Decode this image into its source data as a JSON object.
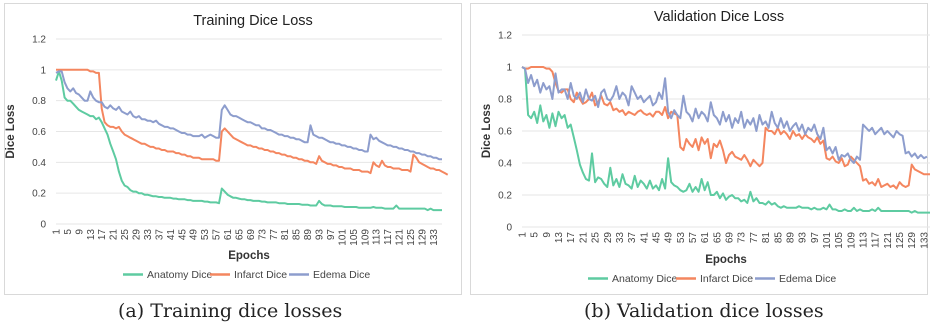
{
  "colors": {
    "anatomy": "#5ecba1",
    "infarct": "#f4865f",
    "edema": "#8d9dcd"
  },
  "captions": {
    "a": "(a) Training dice losses",
    "b": "(b) Validation dice losses"
  },
  "chart_data": [
    {
      "type": "line",
      "title": "Training Dice Loss",
      "xlabel": "Epochs",
      "ylabel": "Dice Loss",
      "ylim": [
        0,
        1.2
      ],
      "yticks": [
        "0",
        "0.2",
        "0.4",
        "0.6",
        "0.8",
        "1",
        "1.2"
      ],
      "xticks": [
        "1",
        "5",
        "9",
        "13",
        "17",
        "21",
        "25",
        "29",
        "33",
        "37",
        "41",
        "45",
        "49",
        "53",
        "57",
        "61",
        "65",
        "69",
        "73",
        "77",
        "81",
        "85",
        "89",
        "93",
        "97",
        "101",
        "105",
        "109",
        "113",
        "117",
        "121",
        "125",
        "129",
        "133"
      ],
      "grid": true,
      "legend": "bottom",
      "series": [
        {
          "name": "Anatomy Dice",
          "color_key": "anatomy",
          "values": [
            0.93,
            0.99,
            0.93,
            0.82,
            0.8,
            0.8,
            0.78,
            0.76,
            0.74,
            0.73,
            0.72,
            0.71,
            0.7,
            0.7,
            0.68,
            0.69,
            0.66,
            0.62,
            0.58,
            0.52,
            0.47,
            0.42,
            0.34,
            0.28,
            0.25,
            0.24,
            0.22,
            0.21,
            0.21,
            0.2,
            0.2,
            0.19,
            0.19,
            0.185,
            0.18,
            0.18,
            0.175,
            0.175,
            0.17,
            0.17,
            0.17,
            0.165,
            0.165,
            0.16,
            0.16,
            0.16,
            0.155,
            0.155,
            0.15,
            0.15,
            0.15,
            0.15,
            0.145,
            0.145,
            0.14,
            0.14,
            0.14,
            0.135,
            0.23,
            0.21,
            0.19,
            0.18,
            0.17,
            0.17,
            0.165,
            0.16,
            0.16,
            0.155,
            0.155,
            0.15,
            0.15,
            0.15,
            0.145,
            0.145,
            0.14,
            0.14,
            0.14,
            0.14,
            0.135,
            0.135,
            0.135,
            0.13,
            0.13,
            0.13,
            0.13,
            0.13,
            0.125,
            0.125,
            0.125,
            0.12,
            0.12,
            0.12,
            0.15,
            0.13,
            0.12,
            0.12,
            0.12,
            0.115,
            0.115,
            0.115,
            0.115,
            0.11,
            0.11,
            0.11,
            0.11,
            0.11,
            0.105,
            0.105,
            0.105,
            0.105,
            0.105,
            0.11,
            0.105,
            0.105,
            0.105,
            0.1,
            0.1,
            0.1,
            0.1,
            0.12,
            0.1,
            0.1,
            0.1,
            0.1,
            0.1,
            0.1,
            0.1,
            0.1,
            0.1,
            0.1,
            0.09,
            0.1,
            0.09,
            0.09,
            0.09,
            0.09
          ]
        },
        {
          "name": "Infarct Dice",
          "color_key": "infarct",
          "values": [
            1.0,
            1.0,
            1.0,
            1.0,
            1.0,
            1.0,
            1.0,
            1.0,
            1.0,
            1.0,
            1.0,
            1.0,
            0.99,
            0.99,
            0.98,
            0.98,
            0.75,
            0.66,
            0.64,
            0.63,
            0.63,
            0.62,
            0.63,
            0.6,
            0.58,
            0.57,
            0.56,
            0.55,
            0.54,
            0.53,
            0.52,
            0.52,
            0.51,
            0.5,
            0.5,
            0.49,
            0.49,
            0.48,
            0.48,
            0.47,
            0.47,
            0.47,
            0.46,
            0.46,
            0.45,
            0.45,
            0.44,
            0.44,
            0.43,
            0.43,
            0.43,
            0.42,
            0.42,
            0.42,
            0.42,
            0.42,
            0.41,
            0.41,
            0.6,
            0.62,
            0.6,
            0.58,
            0.56,
            0.55,
            0.54,
            0.53,
            0.52,
            0.51,
            0.51,
            0.5,
            0.5,
            0.49,
            0.49,
            0.48,
            0.48,
            0.47,
            0.47,
            0.46,
            0.46,
            0.45,
            0.45,
            0.44,
            0.44,
            0.43,
            0.43,
            0.42,
            0.42,
            0.41,
            0.41,
            0.4,
            0.4,
            0.39,
            0.44,
            0.41,
            0.4,
            0.39,
            0.39,
            0.38,
            0.38,
            0.37,
            0.37,
            0.36,
            0.36,
            0.36,
            0.35,
            0.35,
            0.35,
            0.34,
            0.34,
            0.34,
            0.33,
            0.4,
            0.38,
            0.37,
            0.41,
            0.38,
            0.37,
            0.37,
            0.36,
            0.36,
            0.36,
            0.35,
            0.35,
            0.35,
            0.34,
            0.45,
            0.43,
            0.4,
            0.39,
            0.38,
            0.37,
            0.36,
            0.36,
            0.35,
            0.35,
            0.34,
            0.33,
            0.32
          ]
        },
        {
          "name": "Edema Dice",
          "color_key": "edema",
          "values": [
            0.98,
            0.99,
            0.99,
            0.92,
            0.88,
            0.86,
            0.88,
            0.85,
            0.84,
            0.82,
            0.8,
            0.8,
            0.86,
            0.82,
            0.8,
            0.79,
            0.79,
            0.76,
            0.75,
            0.77,
            0.75,
            0.74,
            0.76,
            0.73,
            0.72,
            0.71,
            0.73,
            0.7,
            0.69,
            0.7,
            0.68,
            0.68,
            0.67,
            0.67,
            0.66,
            0.67,
            0.65,
            0.64,
            0.63,
            0.63,
            0.62,
            0.62,
            0.61,
            0.6,
            0.59,
            0.59,
            0.58,
            0.58,
            0.57,
            0.57,
            0.57,
            0.58,
            0.56,
            0.57,
            0.58,
            0.57,
            0.56,
            0.56,
            0.74,
            0.77,
            0.74,
            0.71,
            0.7,
            0.7,
            0.69,
            0.68,
            0.67,
            0.66,
            0.66,
            0.65,
            0.64,
            0.64,
            0.62,
            0.62,
            0.61,
            0.61,
            0.6,
            0.59,
            0.58,
            0.58,
            0.57,
            0.57,
            0.56,
            0.56,
            0.55,
            0.55,
            0.54,
            0.53,
            0.53,
            0.64,
            0.58,
            0.57,
            0.56,
            0.56,
            0.55,
            0.54,
            0.53,
            0.53,
            0.52,
            0.52,
            0.51,
            0.51,
            0.5,
            0.5,
            0.49,
            0.49,
            0.48,
            0.48,
            0.47,
            0.47,
            0.58,
            0.55,
            0.56,
            0.54,
            0.53,
            0.52,
            0.51,
            0.51,
            0.5,
            0.5,
            0.49,
            0.49,
            0.48,
            0.48,
            0.47,
            0.47,
            0.46,
            0.46,
            0.45,
            0.45,
            0.44,
            0.44,
            0.43,
            0.43,
            0.42,
            0.42
          ]
        }
      ]
    },
    {
      "type": "line",
      "title": "Validation Dice Loss",
      "xlabel": "Epochs",
      "ylabel": "Dice Loss",
      "ylim": [
        0,
        1.2
      ],
      "yticks": [
        "0",
        "0.2",
        "0.4",
        "0.6",
        "0.8",
        "1",
        "1.2"
      ],
      "xticks": [
        "1",
        "5",
        "9",
        "13",
        "17",
        "21",
        "25",
        "29",
        "33",
        "37",
        "41",
        "45",
        "49",
        "53",
        "57",
        "61",
        "65",
        "69",
        "73",
        "77",
        "81",
        "85",
        "89",
        "93",
        "97",
        "101",
        "105",
        "109",
        "113",
        "117",
        "121",
        "125",
        "129",
        "133"
      ],
      "grid": true,
      "legend": "bottom",
      "series": [
        {
          "name": "Anatomy Dice",
          "color_key": "anatomy",
          "values": [
            1.0,
            0.99,
            0.7,
            0.68,
            0.72,
            0.65,
            0.76,
            0.66,
            0.7,
            0.62,
            0.71,
            0.63,
            0.72,
            0.68,
            0.7,
            0.62,
            0.64,
            0.56,
            0.48,
            0.39,
            0.34,
            0.3,
            0.29,
            0.46,
            0.28,
            0.31,
            0.3,
            0.27,
            0.25,
            0.37,
            0.26,
            0.3,
            0.25,
            0.33,
            0.27,
            0.26,
            0.24,
            0.32,
            0.25,
            0.29,
            0.27,
            0.24,
            0.29,
            0.24,
            0.26,
            0.23,
            0.3,
            0.24,
            0.43,
            0.28,
            0.26,
            0.25,
            0.23,
            0.22,
            0.23,
            0.27,
            0.22,
            0.25,
            0.22,
            0.3,
            0.23,
            0.28,
            0.2,
            0.2,
            0.22,
            0.18,
            0.21,
            0.17,
            0.19,
            0.2,
            0.18,
            0.18,
            0.16,
            0.17,
            0.15,
            0.22,
            0.16,
            0.18,
            0.15,
            0.15,
            0.14,
            0.16,
            0.14,
            0.15,
            0.13,
            0.12,
            0.13,
            0.12,
            0.12,
            0.12,
            0.12,
            0.13,
            0.12,
            0.12,
            0.12,
            0.11,
            0.12,
            0.11,
            0.11,
            0.12,
            0.11,
            0.14,
            0.11,
            0.11,
            0.1,
            0.1,
            0.11,
            0.1,
            0.1,
            0.12,
            0.1,
            0.11,
            0.1,
            0.1,
            0.1,
            0.11,
            0.1,
            0.12,
            0.1,
            0.1,
            0.1,
            0.1,
            0.1,
            0.1,
            0.1,
            0.1,
            0.1,
            0.1,
            0.09,
            0.1,
            0.09,
            0.09,
            0.09,
            0.09,
            0.09
          ]
        },
        {
          "name": "Infarct Dice",
          "color_key": "infarct",
          "values": [
            1.0,
            0.99,
            0.99,
            1.0,
            1.0,
            1.0,
            1.0,
            1.0,
            0.99,
            0.99,
            0.97,
            0.9,
            0.85,
            0.84,
            0.86,
            0.86,
            0.8,
            0.78,
            0.84,
            0.8,
            0.77,
            0.78,
            0.8,
            0.84,
            0.76,
            0.78,
            0.82,
            0.77,
            0.76,
            0.78,
            0.73,
            0.74,
            0.72,
            0.73,
            0.7,
            0.72,
            0.71,
            0.7,
            0.72,
            0.73,
            0.71,
            0.7,
            0.71,
            0.69,
            0.72,
            0.72,
            0.7,
            0.75,
            0.68,
            0.72,
            0.71,
            0.7,
            0.5,
            0.48,
            0.55,
            0.52,
            0.5,
            0.55,
            0.48,
            0.56,
            0.52,
            0.55,
            0.43,
            0.52,
            0.5,
            0.54,
            0.48,
            0.4,
            0.45,
            0.47,
            0.44,
            0.43,
            0.42,
            0.45,
            0.42,
            0.38,
            0.42,
            0.4,
            0.38,
            0.4,
            0.62,
            0.6,
            0.6,
            0.58,
            0.62,
            0.58,
            0.6,
            0.58,
            0.55,
            0.6,
            0.57,
            0.58,
            0.55,
            0.58,
            0.56,
            0.55,
            0.53,
            0.56,
            0.52,
            0.54,
            0.43,
            0.42,
            0.44,
            0.41,
            0.4,
            0.43,
            0.38,
            0.39,
            0.44,
            0.42,
            0.4,
            0.38,
            0.29,
            0.3,
            0.27,
            0.28,
            0.26,
            0.3,
            0.25,
            0.26,
            0.27,
            0.25,
            0.26,
            0.24,
            0.28,
            0.26,
            0.25,
            0.26,
            0.39,
            0.36,
            0.35,
            0.34,
            0.33,
            0.33,
            0.33,
            0.33
          ]
        },
        {
          "name": "Edema Dice",
          "color_key": "edema",
          "values": [
            1.0,
            0.99,
            0.9,
            0.95,
            0.88,
            0.92,
            0.84,
            0.9,
            0.86,
            0.88,
            0.8,
            0.96,
            0.84,
            0.86,
            0.86,
            0.8,
            0.9,
            0.82,
            0.8,
            0.84,
            0.78,
            0.86,
            0.8,
            0.79,
            0.82,
            0.75,
            0.84,
            0.86,
            0.8,
            0.79,
            0.82,
            0.88,
            0.8,
            0.84,
            0.82,
            0.76,
            0.88,
            0.84,
            0.8,
            0.82,
            0.78,
            0.8,
            0.82,
            0.76,
            0.78,
            0.84,
            0.8,
            0.93,
            0.72,
            0.68,
            0.73,
            0.7,
            0.68,
            0.82,
            0.72,
            0.7,
            0.66,
            0.74,
            0.68,
            0.72,
            0.7,
            0.66,
            0.78,
            0.7,
            0.68,
            0.64,
            0.72,
            0.66,
            0.7,
            0.62,
            0.68,
            0.65,
            0.72,
            0.62,
            0.67,
            0.64,
            0.68,
            0.6,
            0.7,
            0.64,
            0.66,
            0.62,
            0.72,
            0.65,
            0.62,
            0.68,
            0.62,
            0.66,
            0.6,
            0.63,
            0.65,
            0.6,
            0.64,
            0.58,
            0.62,
            0.6,
            0.64,
            0.58,
            0.55,
            0.62,
            0.48,
            0.5,
            0.46,
            0.5,
            0.42,
            0.45,
            0.44,
            0.46,
            0.42,
            0.4,
            0.44,
            0.42,
            0.64,
            0.62,
            0.6,
            0.62,
            0.58,
            0.6,
            0.62,
            0.58,
            0.6,
            0.58,
            0.56,
            0.6,
            0.58,
            0.57,
            0.46,
            0.47,
            0.44,
            0.46,
            0.43,
            0.45,
            0.43,
            0.44
          ]
        }
      ]
    }
  ]
}
